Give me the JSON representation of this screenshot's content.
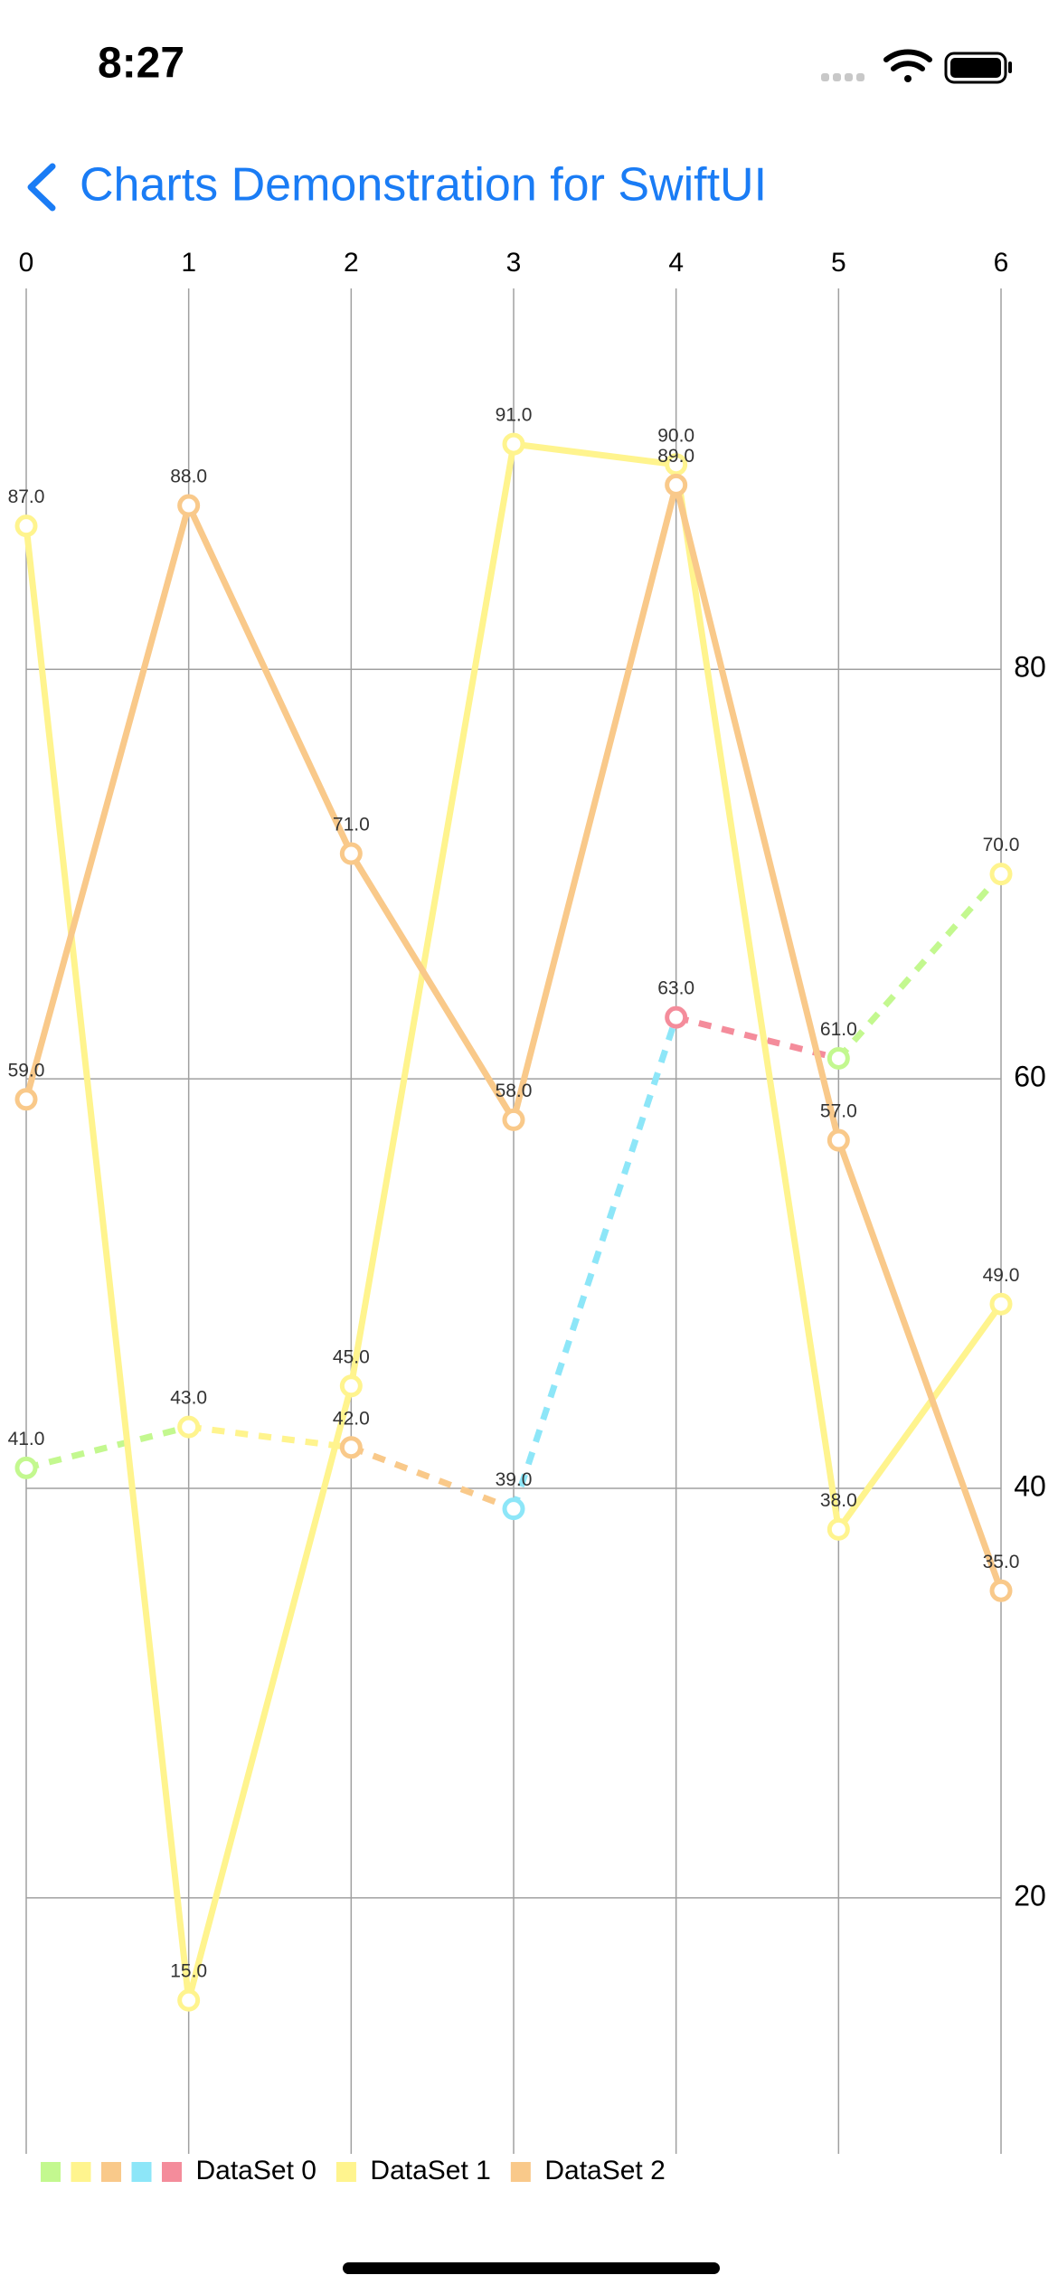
{
  "status_bar": {
    "time": "8:27"
  },
  "nav": {
    "title": "Charts Demonstration for SwiftUI"
  },
  "chart_data": {
    "type": "line",
    "x": [
      0,
      1,
      2,
      3,
      4,
      5,
      6
    ],
    "xlim": [
      0,
      6
    ],
    "xticks": [
      0,
      1,
      2,
      3,
      4,
      5,
      6
    ],
    "ylim": [
      7.5,
      98.6
    ],
    "yticks": [
      20,
      40,
      60,
      80
    ],
    "grid": true,
    "legend": "bottom-left",
    "series": [
      {
        "name": "DataSet 0",
        "colors": [
          "#c3f88f",
          "#fff48e",
          "#f9c98a",
          "#8de6f8",
          "#f48c9b"
        ],
        "dashed": true,
        "values": [
          41,
          43,
          42,
          39,
          63,
          61,
          70
        ],
        "value_labels": [
          "41.0",
          "43.0",
          "42.0",
          "39.0",
          "63.0",
          "61.0",
          "70.0"
        ]
      },
      {
        "name": "DataSet 1",
        "color": "#fff48e",
        "dashed": false,
        "values": [
          87,
          15,
          45,
          91,
          90,
          38,
          49
        ],
        "value_labels": [
          "87.0",
          "15.0",
          "45.0",
          "91.0",
          "90.0",
          "38.0",
          "49.0"
        ]
      },
      {
        "name": "DataSet 2",
        "color": "#f9c98a",
        "dashed": false,
        "values": [
          59,
          88,
          71,
          58,
          89,
          57,
          35
        ],
        "value_labels": [
          "59.0",
          "88.0",
          "71.0",
          "58.0",
          "89.0",
          "57.0",
          "35.0"
        ]
      }
    ]
  }
}
